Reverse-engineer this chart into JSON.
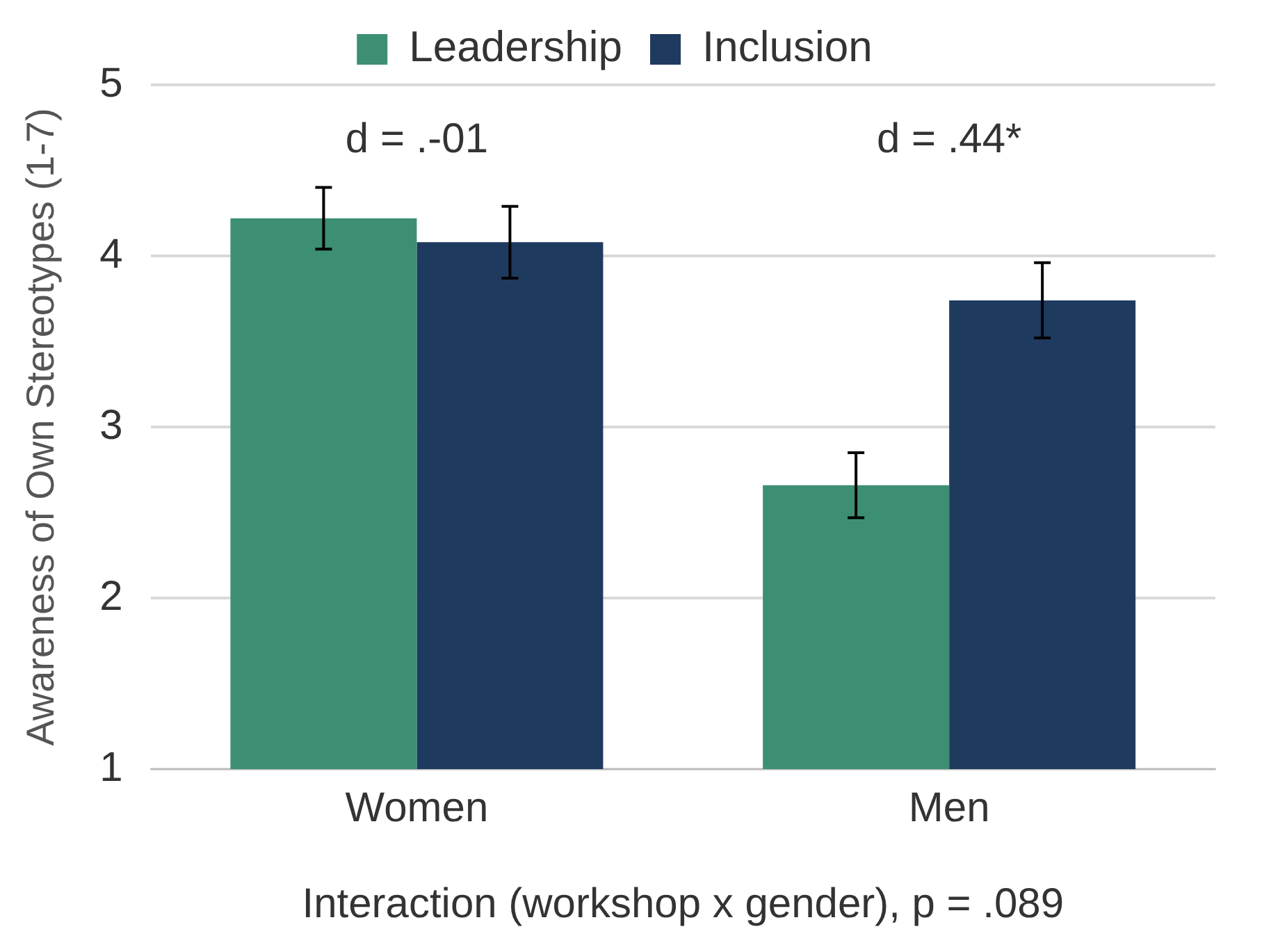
{
  "chart_data": {
    "type": "bar",
    "xlabel": "Interaction (workshop x gender), p = .089",
    "ylabel": "Awareness of Own Stereotypes (1-7)",
    "categories": [
      "Women",
      "Men"
    ],
    "series": [
      {
        "name": "Leadership",
        "color": "#3d8f73",
        "values": [
          4.22,
          2.66
        ],
        "errors": [
          0.18,
          0.19
        ]
      },
      {
        "name": "Inclusion",
        "color": "#1f3a5f",
        "values": [
          4.08,
          3.74
        ],
        "errors": [
          0.21,
          0.22
        ]
      }
    ],
    "annotations": [
      "d = .-01",
      "d = .44*"
    ],
    "ylim": [
      1,
      5
    ],
    "yticks": [
      1,
      2,
      3,
      4,
      5
    ],
    "grid": "y",
    "legend": "top"
  }
}
